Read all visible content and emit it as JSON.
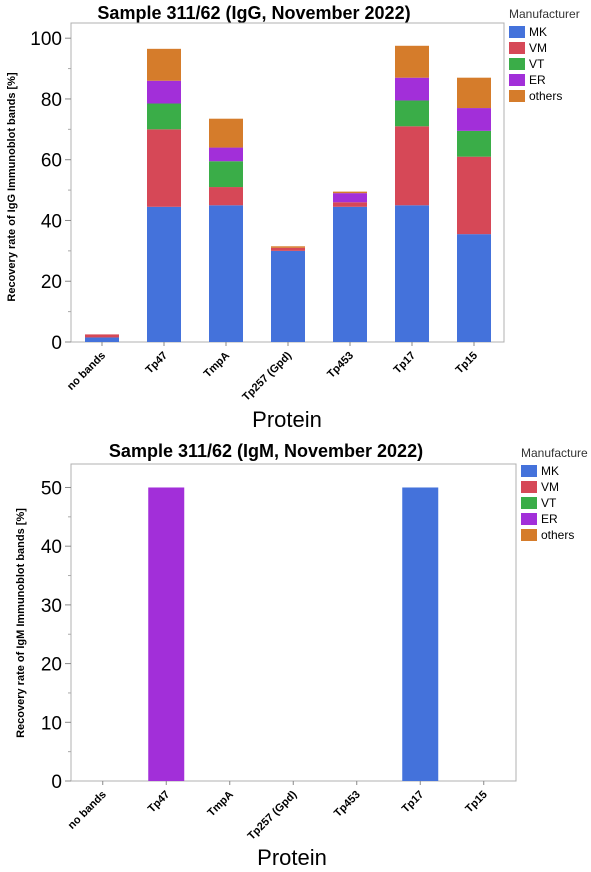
{
  "chart_data": [
    {
      "type": "bar",
      "stacked": true,
      "title": "Sample 311/62 (IgG, November 2022)",
      "xlabel": "Protein",
      "ylabel": "Recovery rate of IgG Immunoblot bands [%]",
      "ylim": [
        0,
        105
      ],
      "yticks": [
        "0",
        "20",
        "40",
        "60",
        "80",
        "100"
      ],
      "legend_title": "Manufacturer",
      "legend_position": "top-right",
      "categories": [
        "no bands",
        "Tp47",
        "TmpA",
        "Tp257 (Gpd)",
        "Tp453",
        "Tp17",
        "Tp15"
      ],
      "series": [
        {
          "name": "MK",
          "color": "#4472db",
          "values": [
            1.5,
            44.5,
            45.0,
            30.0,
            44.5,
            45.0,
            35.5
          ]
        },
        {
          "name": "VM",
          "color": "#d64857",
          "values": [
            1.0,
            25.5,
            6.0,
            1.0,
            1.5,
            26.0,
            25.5
          ]
        },
        {
          "name": "VT",
          "color": "#3aad48",
          "values": [
            0.0,
            8.5,
            8.5,
            0.0,
            0.0,
            8.5,
            8.5
          ]
        },
        {
          "name": "ER",
          "color": "#a22fd9",
          "values": [
            0.0,
            7.5,
            4.5,
            0.0,
            3.0,
            7.5,
            7.5
          ]
        },
        {
          "name": "others",
          "color": "#d57c2b",
          "values": [
            0.0,
            10.5,
            9.5,
            0.5,
            0.5,
            10.5,
            10.0
          ]
        }
      ]
    },
    {
      "type": "bar",
      "stacked": true,
      "title": "Sample 311/62 (IgM, November 2022)",
      "xlabel": "Protein",
      "ylabel": "Recovery rate of IgM Immunoblot bands [%]",
      "ylim": [
        0,
        54
      ],
      "yticks": [
        "0",
        "10",
        "20",
        "30",
        "40",
        "50"
      ],
      "legend_title": "Manufacture",
      "legend_position": "top-right",
      "categories": [
        "no bands",
        "Tp47",
        "TmpA",
        "Tp257 (Gpd)",
        "Tp453",
        "Tp17",
        "Tp15"
      ],
      "series": [
        {
          "name": "MK",
          "color": "#4472db",
          "values": [
            0,
            0,
            0,
            0,
            0,
            50,
            0
          ]
        },
        {
          "name": "VM",
          "color": "#d64857",
          "values": [
            0,
            0,
            0,
            0,
            0,
            0,
            0
          ]
        },
        {
          "name": "VT",
          "color": "#3aad48",
          "values": [
            0,
            0,
            0,
            0,
            0,
            0,
            0
          ]
        },
        {
          "name": "ER",
          "color": "#a22fd9",
          "values": [
            0,
            50,
            0,
            0,
            0,
            0,
            0
          ]
        },
        {
          "name": "others",
          "color": "#d57c2b",
          "values": [
            0,
            0,
            0,
            0,
            0,
            0,
            0
          ]
        }
      ]
    }
  ]
}
